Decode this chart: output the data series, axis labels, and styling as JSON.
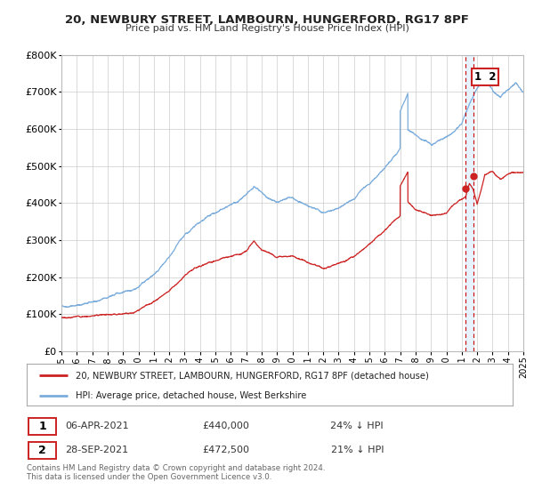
{
  "title": "20, NEWBURY STREET, LAMBOURN, HUNGERFORD, RG17 8PF",
  "subtitle": "Price paid vs. HM Land Registry's House Price Index (HPI)",
  "legend_line1": "20, NEWBURY STREET, LAMBOURN, HUNGERFORD, RG17 8PF (detached house)",
  "legend_line2": "HPI: Average price, detached house, West Berkshire",
  "transaction1_date": "06-APR-2021",
  "transaction1_price": "£440,000",
  "transaction1_hpi": "24% ↓ HPI",
  "transaction2_date": "28-SEP-2021",
  "transaction2_price": "£472,500",
  "transaction2_hpi": "21% ↓ HPI",
  "footer": "Contains HM Land Registry data © Crown copyright and database right 2024.\nThis data is licensed under the Open Government Licence v3.0.",
  "hpi_color": "#7aacdc",
  "price_color": "#cc2222",
  "dot_color": "#cc2222",
  "vline_color": "#cc0000",
  "annotation_box_color": "#cc2222",
  "shade_color": "#ddeeff",
  "ylim": [
    0,
    800000
  ],
  "yticks": [
    0,
    100000,
    200000,
    300000,
    400000,
    500000,
    600000,
    700000,
    800000
  ],
  "xmin": 1995,
  "xmax": 2025,
  "dot1_x": 2021.27,
  "dot1_y": 440000,
  "dot2_x": 2021.75,
  "dot2_y": 472500,
  "background_color": "#ffffff",
  "grid_color": "#cccccc"
}
